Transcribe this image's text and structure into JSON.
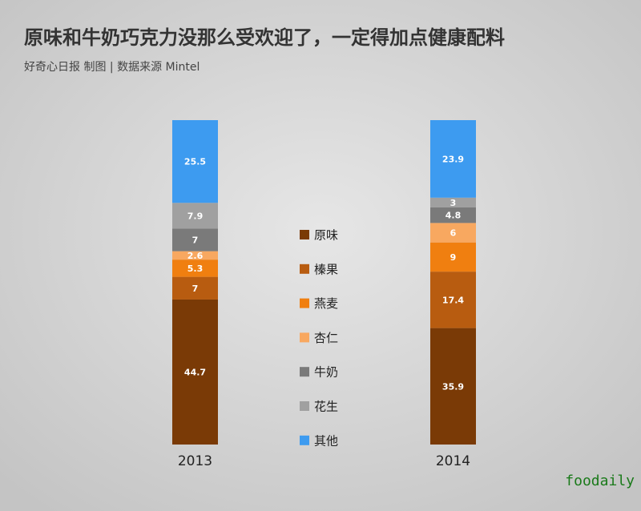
{
  "chart_data": {
    "type": "stacked-bar",
    "title": "原味和牛奶巧克力没那么受欢迎了，一定得加点健康配料",
    "subtitle": "好奇心日报 制图 | 数据来源 Mintel",
    "watermark": "foodaily",
    "categories": [
      "2013",
      "2014"
    ],
    "series": [
      {
        "name": "原味",
        "color": "#7a3a06",
        "values": [
          44.7,
          35.9
        ]
      },
      {
        "name": "榛果",
        "color": "#b85c10",
        "values": [
          7,
          17.4
        ]
      },
      {
        "name": "燕麦",
        "color": "#f07f10",
        "values": [
          5.3,
          9
        ]
      },
      {
        "name": "杏仁",
        "color": "#f8a860",
        "values": [
          2.6,
          6
        ]
      },
      {
        "name": "牛奶",
        "color": "#7a7a7a",
        "values": [
          7,
          4.8
        ]
      },
      {
        "name": "花生",
        "color": "#a0a0a0",
        "values": [
          7.9,
          3
        ]
      },
      {
        "name": "其他",
        "color": "#3d9bf0",
        "values": [
          25.5,
          23.9
        ]
      }
    ]
  }
}
